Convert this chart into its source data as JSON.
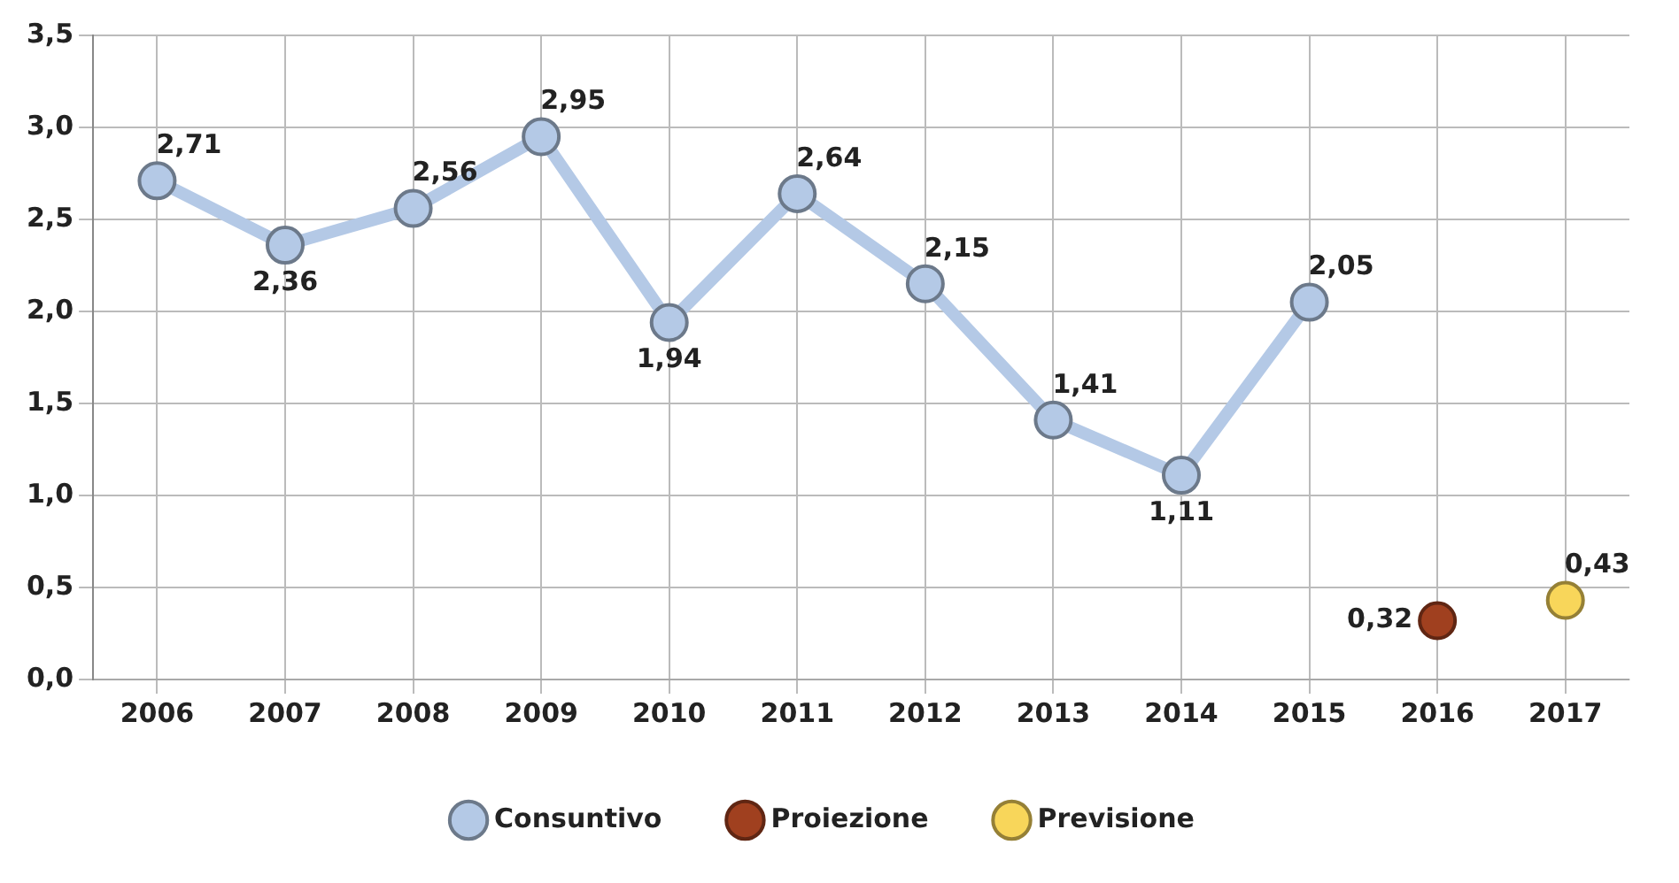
{
  "chart_data": {
    "type": "line",
    "categories": [
      "2006",
      "2007",
      "2008",
      "2009",
      "2010",
      "2011",
      "2012",
      "2013",
      "2014",
      "2015",
      "2016",
      "2017"
    ],
    "series": [
      {
        "name": "Consuntivo",
        "color": "#b4c9e6",
        "values": [
          2.71,
          2.36,
          2.56,
          2.95,
          1.94,
          2.64,
          2.15,
          1.41,
          1.11,
          2.05,
          null,
          null
        ],
        "value_labels": [
          "2,71",
          "2,36",
          "2,56",
          "2,95",
          "1,94",
          "2,64",
          "2,15",
          "1,41",
          "1,11",
          "2,05",
          null,
          null
        ]
      },
      {
        "name": "Proiezione",
        "color": "#a0401f",
        "values": [
          null,
          null,
          null,
          null,
          null,
          null,
          null,
          null,
          null,
          null,
          0.32,
          null
        ],
        "value_labels": [
          null,
          null,
          null,
          null,
          null,
          null,
          null,
          null,
          null,
          null,
          "0,32",
          null
        ]
      },
      {
        "name": "Previsione",
        "color": "#f8d65a",
        "values": [
          null,
          null,
          null,
          null,
          null,
          null,
          null,
          null,
          null,
          null,
          null,
          0.43
        ],
        "value_labels": [
          null,
          null,
          null,
          null,
          null,
          null,
          null,
          null,
          null,
          null,
          null,
          "0,43"
        ]
      }
    ],
    "ylim": [
      0,
      3.5
    ],
    "yticks": [
      {
        "value": 0,
        "label": "0,0"
      },
      {
        "value": 0.5,
        "label": "0,5"
      },
      {
        "value": 1,
        "label": "1,0"
      },
      {
        "value": 1.5,
        "label": "1,5"
      },
      {
        "value": 2,
        "label": "2,0"
      },
      {
        "value": 2.5,
        "label": "2,5"
      },
      {
        "value": 3,
        "label": "3,0"
      },
      {
        "value": 3.5,
        "label": "3,5"
      }
    ],
    "grid": true,
    "legend": "bottom",
    "marker": "circle"
  }
}
